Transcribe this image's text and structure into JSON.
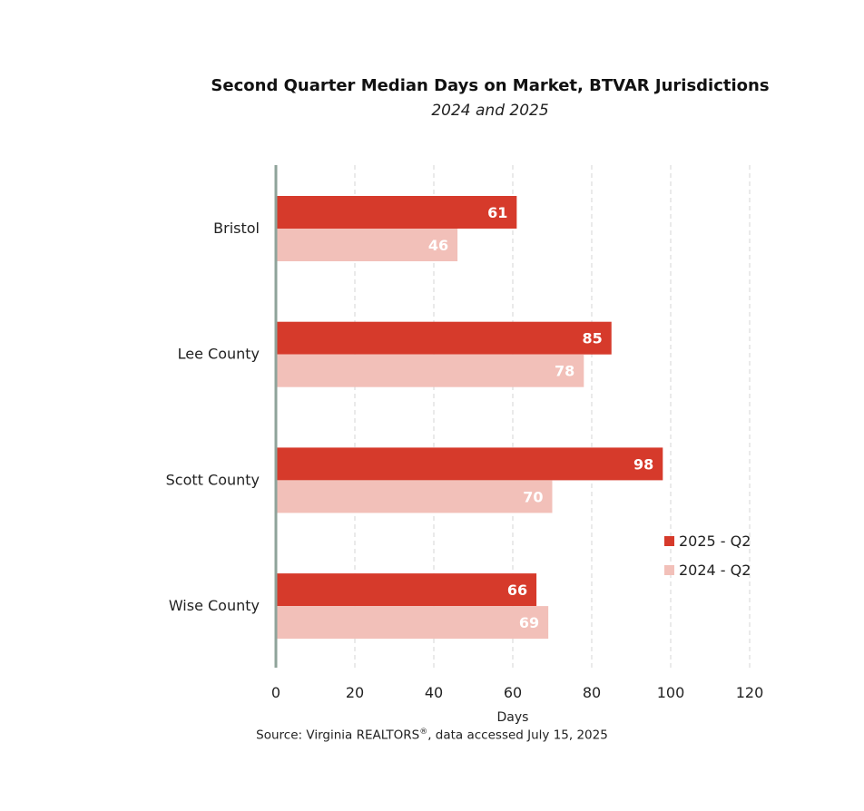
{
  "header": {
    "title": "Second Quarter Median Days on Market, BTVAR Jurisdictions",
    "subtitle": "2024 and 2025"
  },
  "footer": {
    "source_prefix": "Source: Virginia REALTORS",
    "source_sup": "®",
    "source_suffix": ", data accessed July 15, 2025"
  },
  "chart_data": {
    "type": "bar",
    "orientation": "horizontal",
    "categories": [
      "Bristol",
      "Lee County",
      "Scott County",
      "Wise County"
    ],
    "series": [
      {
        "name": "2025 - Q2",
        "values": [
          61,
          85,
          98,
          66
        ],
        "color": "#d63a2b",
        "label_color": "#ffffff"
      },
      {
        "name": "2024 - Q2",
        "values": [
          46,
          78,
          70,
          69
        ],
        "color": "#f2c0b9",
        "label_color": "#ffffff"
      }
    ],
    "xlabel": "Days",
    "xlim": [
      0,
      120
    ],
    "xticks": [
      0,
      20,
      40,
      60,
      80,
      100,
      120
    ],
    "grid": "vertical dashed",
    "legend_position": "right"
  }
}
